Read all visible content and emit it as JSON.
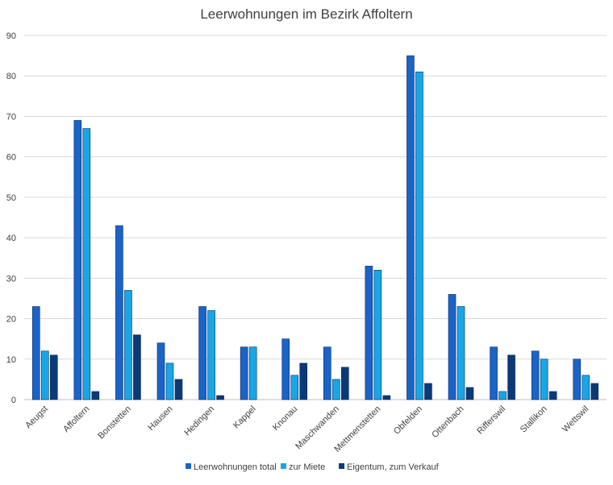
{
  "chart_data": {
    "type": "bar",
    "title": "Leerwohnungen im Bezirk Affoltern",
    "categories": [
      "Aeugst",
      "Affoltern",
      "Bonstetten",
      "Hausen",
      "Hedingen",
      "Kappel",
      "Knonau",
      "Maschwanden",
      "Mettmenstetten",
      "Obfelden",
      "Ottenbach",
      "Rifferswil",
      "Stallikon",
      "Wettswil"
    ],
    "series": [
      {
        "name": "Leerwohnungen total",
        "color": "#1a63c8",
        "values": [
          23,
          69,
          43,
          14,
          23,
          13,
          15,
          13,
          33,
          85,
          26,
          13,
          12,
          10
        ]
      },
      {
        "name": "zur Miete",
        "color": "#19a6e6",
        "values": [
          12,
          67,
          27,
          9,
          22,
          13,
          6,
          5,
          32,
          81,
          23,
          2,
          10,
          6
        ]
      },
      {
        "name": "Eigentum, zum Verkauf",
        "color": "#0b3a78",
        "values": [
          11,
          2,
          16,
          5,
          1,
          0,
          9,
          8,
          1,
          4,
          3,
          11,
          2,
          4
        ]
      }
    ],
    "ylim": [
      0,
      90
    ],
    "yticks": [
      0,
      10,
      20,
      30,
      40,
      50,
      60,
      70,
      80,
      90
    ],
    "grid": true,
    "legend_position": "bottom"
  }
}
